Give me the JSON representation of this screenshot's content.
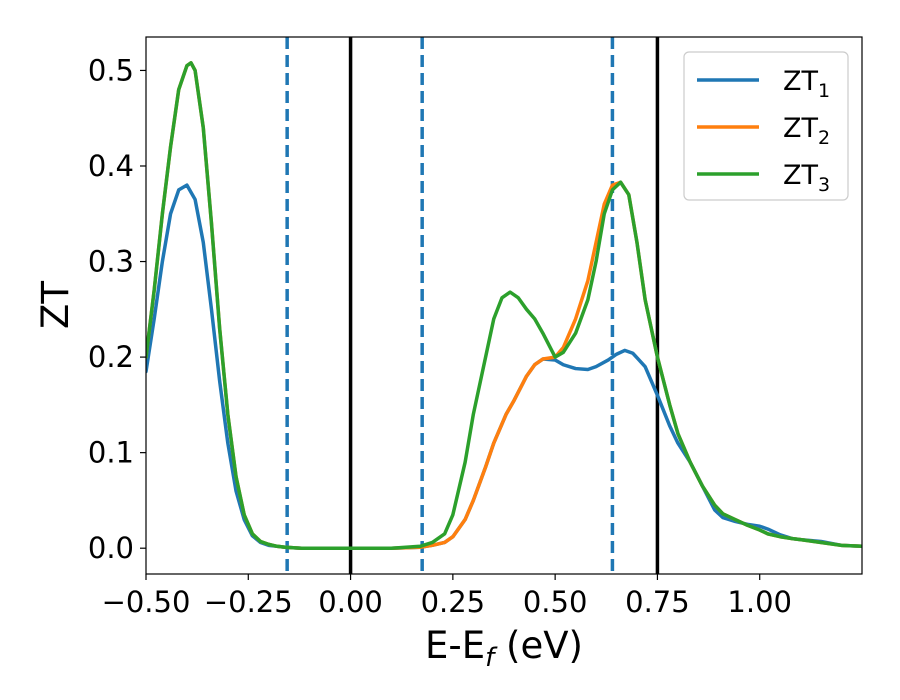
{
  "chart_data": {
    "type": "line",
    "xlabel": {
      "main": "E-E",
      "sub": "f",
      "tail": " (eV)"
    },
    "ylabel": "ZT",
    "xlim": [
      -0.5,
      1.25
    ],
    "ylim": [
      -0.027,
      0.535
    ],
    "xticks": [
      -0.5,
      -0.25,
      0.0,
      0.25,
      0.5,
      0.75,
      1.0
    ],
    "xtick_labels": [
      "−0.50",
      "−0.25",
      "0.00",
      "0.25",
      "0.50",
      "0.75",
      "1.00"
    ],
    "yticks": [
      0.0,
      0.1,
      0.2,
      0.3,
      0.4,
      0.5
    ],
    "ytick_labels": [
      "0.0",
      "0.1",
      "0.2",
      "0.3",
      "0.4",
      "0.5"
    ],
    "grid": false,
    "legend_position": "top-right",
    "vlines": [
      {
        "x": -0.155,
        "style": "dashed",
        "color": "#1f77b4"
      },
      {
        "x": 0.0,
        "style": "solid",
        "color": "#000000"
      },
      {
        "x": 0.175,
        "style": "dashed",
        "color": "#1f77b4"
      },
      {
        "x": 0.64,
        "style": "dashed",
        "color": "#1f77b4"
      },
      {
        "x": 0.75,
        "style": "solid",
        "color": "#000000"
      }
    ],
    "series": [
      {
        "name": "ZT",
        "sub": "1",
        "color": "#1f77b4",
        "x": [
          -0.5,
          -0.48,
          -0.46,
          -0.44,
          -0.42,
          -0.4,
          -0.38,
          -0.36,
          -0.34,
          -0.32,
          -0.3,
          -0.28,
          -0.26,
          -0.24,
          -0.22,
          -0.2,
          -0.18,
          -0.16,
          -0.12,
          -0.08,
          0.0,
          0.1,
          0.17,
          0.2,
          0.23,
          0.25,
          0.28,
          0.3,
          0.33,
          0.35,
          0.38,
          0.4,
          0.43,
          0.45,
          0.47,
          0.5,
          0.52,
          0.55,
          0.58,
          0.6,
          0.63,
          0.65,
          0.67,
          0.69,
          0.72,
          0.75,
          0.78,
          0.8,
          0.83,
          0.86,
          0.89,
          0.91,
          0.94,
          0.97,
          1.0,
          1.02,
          1.05,
          1.08,
          1.1,
          1.15,
          1.2,
          1.25
        ],
        "y": [
          0.185,
          0.24,
          0.3,
          0.35,
          0.375,
          0.38,
          0.365,
          0.32,
          0.25,
          0.175,
          0.11,
          0.06,
          0.03,
          0.013,
          0.006,
          0.003,
          0.002,
          0.001,
          0.0,
          0.0,
          0.0,
          0.0,
          0.001,
          0.003,
          0.006,
          0.012,
          0.03,
          0.05,
          0.085,
          0.11,
          0.14,
          0.155,
          0.18,
          0.192,
          0.198,
          0.197,
          0.192,
          0.188,
          0.187,
          0.19,
          0.197,
          0.203,
          0.207,
          0.204,
          0.19,
          0.16,
          0.128,
          0.11,
          0.09,
          0.065,
          0.04,
          0.032,
          0.028,
          0.025,
          0.023,
          0.02,
          0.014,
          0.01,
          0.009,
          0.007,
          0.003,
          0.002
        ]
      },
      {
        "name": "ZT",
        "sub": "2",
        "color": "#ff7f0e",
        "x": [
          -0.5,
          -0.48,
          -0.46,
          -0.44,
          -0.42,
          -0.4,
          -0.39,
          -0.38,
          -0.36,
          -0.34,
          -0.32,
          -0.3,
          -0.28,
          -0.26,
          -0.24,
          -0.22,
          -0.2,
          -0.18,
          -0.16,
          -0.12,
          -0.08,
          0.0,
          0.1,
          0.17,
          0.2,
          0.23,
          0.25,
          0.28,
          0.3,
          0.33,
          0.35,
          0.38,
          0.4,
          0.43,
          0.45,
          0.47,
          0.5,
          0.52,
          0.55,
          0.58,
          0.6,
          0.62,
          0.64,
          0.66,
          0.68,
          0.7,
          0.72,
          0.75,
          0.78,
          0.8,
          0.83,
          0.86,
          0.89,
          0.91,
          0.94,
          0.97,
          1.0,
          1.02,
          1.05,
          1.08,
          1.1,
          1.15,
          1.2,
          1.25
        ],
        "y": [
          0.2,
          0.27,
          0.35,
          0.42,
          0.48,
          0.505,
          0.508,
          0.5,
          0.44,
          0.34,
          0.23,
          0.14,
          0.075,
          0.035,
          0.015,
          0.007,
          0.004,
          0.002,
          0.001,
          0.0,
          0.0,
          0.0,
          0.0,
          0.001,
          0.003,
          0.006,
          0.012,
          0.03,
          0.05,
          0.085,
          0.11,
          0.14,
          0.155,
          0.18,
          0.192,
          0.198,
          0.2,
          0.21,
          0.24,
          0.28,
          0.32,
          0.36,
          0.38,
          0.383,
          0.37,
          0.32,
          0.26,
          0.2,
          0.15,
          0.12,
          0.09,
          0.065,
          0.045,
          0.036,
          0.03,
          0.024,
          0.019,
          0.015,
          0.012,
          0.01,
          0.009,
          0.006,
          0.003,
          0.002
        ]
      },
      {
        "name": "ZT",
        "sub": "3",
        "color": "#2ca02c",
        "x": [
          -0.5,
          -0.48,
          -0.46,
          -0.44,
          -0.42,
          -0.4,
          -0.39,
          -0.38,
          -0.36,
          -0.34,
          -0.32,
          -0.3,
          -0.28,
          -0.26,
          -0.24,
          -0.22,
          -0.2,
          -0.18,
          -0.16,
          -0.12,
          -0.08,
          0.0,
          0.1,
          0.17,
          0.2,
          0.23,
          0.25,
          0.28,
          0.3,
          0.33,
          0.35,
          0.37,
          0.39,
          0.41,
          0.43,
          0.45,
          0.47,
          0.5,
          0.52,
          0.55,
          0.58,
          0.6,
          0.62,
          0.64,
          0.66,
          0.68,
          0.7,
          0.72,
          0.75,
          0.78,
          0.8,
          0.83,
          0.86,
          0.89,
          0.91,
          0.94,
          0.97,
          1.0,
          1.02,
          1.05,
          1.08,
          1.1,
          1.15,
          1.2,
          1.25
        ],
        "y": [
          0.2,
          0.27,
          0.35,
          0.42,
          0.48,
          0.505,
          0.508,
          0.5,
          0.44,
          0.34,
          0.23,
          0.14,
          0.075,
          0.035,
          0.015,
          0.007,
          0.004,
          0.002,
          0.001,
          0.0,
          0.0,
          0.0,
          0.0,
          0.002,
          0.006,
          0.015,
          0.035,
          0.09,
          0.14,
          0.2,
          0.24,
          0.262,
          0.268,
          0.262,
          0.25,
          0.24,
          0.225,
          0.2,
          0.205,
          0.225,
          0.26,
          0.3,
          0.35,
          0.375,
          0.383,
          0.37,
          0.32,
          0.26,
          0.2,
          0.15,
          0.12,
          0.09,
          0.065,
          0.045,
          0.036,
          0.03,
          0.024,
          0.019,
          0.015,
          0.012,
          0.01,
          0.009,
          0.006,
          0.003,
          0.002
        ]
      }
    ]
  }
}
